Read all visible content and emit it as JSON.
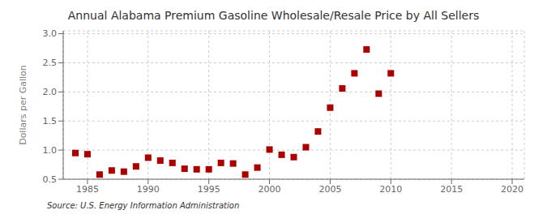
{
  "chart_data": {
    "type": "scatter",
    "title": "Annual Alabama Premium Gasoline Wholesale/Resale Price by All Sellers",
    "ylabel": "Dollars per Gallon",
    "annotations": [
      "Source: U.S. Energy Information Administration"
    ],
    "x": [
      1984,
      1985,
      1986,
      1987,
      1988,
      1989,
      1990,
      1991,
      1992,
      1993,
      1994,
      1995,
      1996,
      1997,
      1998,
      1999,
      2000,
      2001,
      2002,
      2003,
      2004,
      2005,
      2006,
      2007,
      2008,
      2009,
      2010
    ],
    "values": [
      0.95,
      0.93,
      0.58,
      0.65,
      0.63,
      0.72,
      0.87,
      0.82,
      0.78,
      0.68,
      0.67,
      0.67,
      0.78,
      0.77,
      0.58,
      0.7,
      1.01,
      0.92,
      0.88,
      1.05,
      1.32,
      1.73,
      2.06,
      2.32,
      2.73,
      1.97,
      2.32
    ],
    "color": "#aa0000",
    "marker": "square",
    "xlim": [
      1983,
      2021
    ],
    "ylim": [
      0.5,
      3.05
    ],
    "xticks": [
      1985,
      1990,
      1995,
      2000,
      2005,
      2010,
      2015,
      2020
    ],
    "yticks": [
      0.5,
      {
        "value": 1.0,
        "label": "1.0"
      },
      1.5,
      {
        "value": 2.0,
        "label": "2.0"
      },
      2.5,
      {
        "value": 3.0,
        "label": "3.0"
      }
    ],
    "grid": true
  }
}
